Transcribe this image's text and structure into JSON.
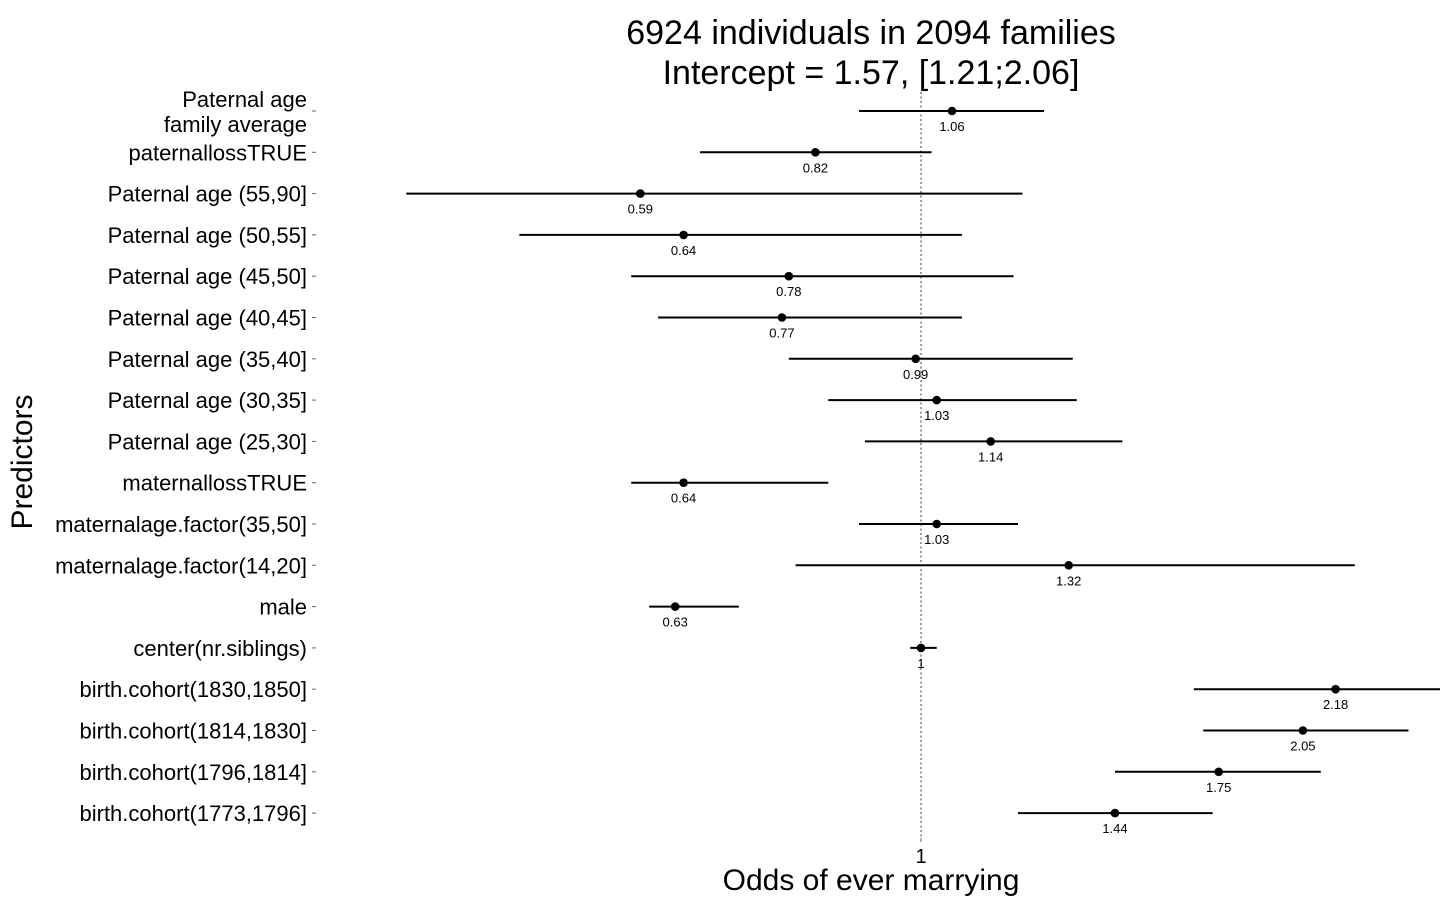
{
  "chart_data": {
    "type": "forest",
    "title": [
      "6924 individuals in 2094 families",
      "Intercept = 1.57, [1.21;2.06]"
    ],
    "xlabel": "Odds of ever marrying",
    "ylabel": "Predictors",
    "x_scale": "log",
    "reference_line": 1,
    "x_ticks": [
      {
        "value": 1,
        "label": "1"
      }
    ],
    "xlim": [
      0.5,
      2.5
    ],
    "grid": false,
    "rows": [
      {
        "label": [
          "Paternal age",
          "family average"
        ],
        "estimate": 1.06,
        "value_label": "1.06",
        "lower": 0.89,
        "upper": 1.26
      },
      {
        "label": [
          "paternallossTRUE"
        ],
        "estimate": 0.82,
        "value_label": "0.82",
        "lower": 0.66,
        "upper": 1.02
      },
      {
        "label": [
          "Paternal age (55,90]"
        ],
        "estimate": 0.59,
        "value_label": "0.59",
        "lower": 0.38,
        "upper": 1.21
      },
      {
        "label": [
          "Paternal age (50,55]"
        ],
        "estimate": 0.64,
        "value_label": "0.64",
        "lower": 0.47,
        "upper": 1.08
      },
      {
        "label": [
          "Paternal age (45,50]"
        ],
        "estimate": 0.78,
        "value_label": "0.78",
        "lower": 0.58,
        "upper": 1.19
      },
      {
        "label": [
          "Paternal age (40,45]"
        ],
        "estimate": 0.77,
        "value_label": "0.77",
        "lower": 0.61,
        "upper": 1.08
      },
      {
        "label": [
          "Paternal age (35,40]"
        ],
        "estimate": 0.99,
        "value_label": "0.99",
        "lower": 0.78,
        "upper": 1.33
      },
      {
        "label": [
          "Paternal age (30,35]"
        ],
        "estimate": 1.03,
        "value_label": "1.03",
        "lower": 0.84,
        "upper": 1.34
      },
      {
        "label": [
          "Paternal age (25,30]"
        ],
        "estimate": 1.14,
        "value_label": "1.14",
        "lower": 0.9,
        "upper": 1.46
      },
      {
        "label": [
          "maternallossTRUE"
        ],
        "estimate": 0.64,
        "value_label": "0.64",
        "lower": 0.58,
        "upper": 0.84
      },
      {
        "label": [
          "maternalage.factor(35,50]"
        ],
        "estimate": 1.03,
        "value_label": "1.03",
        "lower": 0.89,
        "upper": 1.2
      },
      {
        "label": [
          "maternalage.factor(14,20]"
        ],
        "estimate": 1.32,
        "value_label": "1.32",
        "lower": 0.79,
        "upper": 2.26
      },
      {
        "label": [
          "male"
        ],
        "estimate": 0.63,
        "value_label": "0.63",
        "lower": 0.6,
        "upper": 0.71
      },
      {
        "label": [
          "center(nr.siblings)"
        ],
        "estimate": 1.0,
        "value_label": "1",
        "lower": 0.98,
        "upper": 1.03
      },
      {
        "label": [
          "birth.cohort(1830,1850]"
        ],
        "estimate": 2.18,
        "value_label": "2.18",
        "lower": 1.67,
        "upper": 2.86
      },
      {
        "label": [
          "birth.cohort(1814,1830]"
        ],
        "estimate": 2.05,
        "value_label": "2.05",
        "lower": 1.7,
        "upper": 2.5
      },
      {
        "label": [
          "birth.cohort(1796,1814]"
        ],
        "estimate": 1.75,
        "value_label": "1.75",
        "lower": 1.44,
        "upper": 2.12
      },
      {
        "label": [
          "birth.cohort(1773,1796]"
        ],
        "estimate": 1.44,
        "value_label": "1.44",
        "lower": 1.2,
        "upper": 1.73
      }
    ]
  }
}
